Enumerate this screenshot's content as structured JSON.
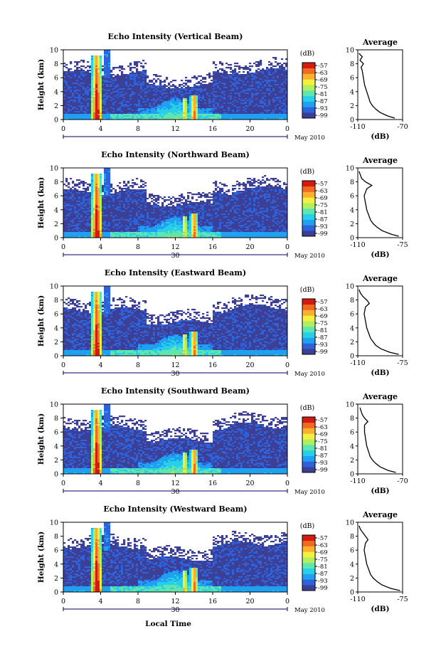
{
  "figure": {
    "x_axis_label": "Local Time",
    "y_axis_label": "Height (km)",
    "month_label": "May 2010",
    "date_label": "30",
    "colorbar_unit": "(dB)",
    "colorbar_ticks": [
      "-57",
      "-63",
      "-69",
      "-75",
      "-81",
      "-87",
      "-93",
      "-99"
    ],
    "average_title": "Average",
    "average_xlabel": "(dB)",
    "colors": [
      "#3b3f96",
      "#2f61d8",
      "#1fa0f0",
      "#27d0e8",
      "#5fe6b0",
      "#b0f060",
      "#f4f040",
      "#f8b030",
      "#f06a20",
      "#d21a12"
    ]
  },
  "chart_data": [
    {
      "type": "heatmap",
      "title": "Echo Intensity (Vertical Beam)",
      "x_ticks": [
        "0",
        "4",
        "8",
        "12",
        "16",
        "20",
        "0"
      ],
      "x_range": [
        0,
        24
      ],
      "y_ticks": [
        "0",
        "2",
        "4",
        "6",
        "8",
        "10"
      ],
      "y_range": [
        0,
        10
      ],
      "show_date": false,
      "average": {
        "title": "Average",
        "x_ticks": [
          "-110",
          "-70"
        ],
        "x_range": [
          -110,
          -70
        ],
        "height_km": [
          0.2,
          0.5,
          1.0,
          1.5,
          2.0,
          2.5,
          3.0,
          4.0,
          5.0,
          6.0,
          7.0,
          7.5,
          8.0,
          8.5,
          9.0,
          9.5
        ],
        "value_db": [
          -77,
          -83,
          -90,
          -94,
          -97,
          -99,
          -100,
          -102,
          -104,
          -105,
          -106,
          -107,
          -105,
          -108,
          -106,
          -109
        ]
      }
    },
    {
      "type": "heatmap",
      "title": "Echo Intensity (Northward Beam)",
      "x_ticks": [
        "0",
        "4",
        "8",
        "12",
        "16",
        "20",
        "0"
      ],
      "x_range": [
        0,
        24
      ],
      "y_ticks": [
        "0",
        "2",
        "4",
        "6",
        "8",
        "10"
      ],
      "y_range": [
        0,
        10
      ],
      "show_date": true,
      "average": {
        "title": "Average",
        "x_ticks": [
          "-110",
          "-75"
        ],
        "x_range": [
          -110,
          -75
        ],
        "height_km": [
          0.2,
          0.5,
          1.0,
          1.5,
          2.0,
          2.5,
          3.0,
          4.0,
          5.0,
          6.0,
          7.0,
          7.5,
          8.0,
          8.5,
          9.0,
          9.5
        ],
        "value_db": [
          -78,
          -84,
          -91,
          -95,
          -98,
          -100,
          -101,
          -103,
          -104,
          -105,
          -103,
          -99,
          -104,
          -107,
          -108,
          -109
        ]
      }
    },
    {
      "type": "heatmap",
      "title": "Echo Intensity (Eastward Beam)",
      "x_ticks": [
        "0",
        "4",
        "8",
        "12",
        "16",
        "20",
        "0"
      ],
      "x_range": [
        0,
        24
      ],
      "y_ticks": [
        "0",
        "2",
        "4",
        "6",
        "8",
        "10"
      ],
      "y_range": [
        0,
        10
      ],
      "show_date": true,
      "average": {
        "title": "Average",
        "x_ticks": [
          "-110",
          "-75"
        ],
        "x_range": [
          -110,
          -75
        ],
        "height_km": [
          0.2,
          0.5,
          1.0,
          1.5,
          2.0,
          2.5,
          3.0,
          4.0,
          5.0,
          6.0,
          7.0,
          7.5,
          8.0,
          8.5,
          9.0,
          9.5
        ],
        "value_db": [
          -78,
          -85,
          -92,
          -96,
          -98,
          -100,
          -101,
          -103,
          -104,
          -105,
          -104,
          -101,
          -103,
          -106,
          -108,
          -109
        ]
      }
    },
    {
      "type": "heatmap",
      "title": "Echo Intensity (Southward Beam)",
      "x_ticks": [
        "0",
        "4",
        "8",
        "12",
        "16",
        "20",
        "0"
      ],
      "x_range": [
        0,
        24
      ],
      "y_ticks": [
        "0",
        "2",
        "4",
        "6",
        "8",
        "10"
      ],
      "y_range": [
        0,
        10
      ],
      "show_date": true,
      "average": {
        "title": "Average",
        "x_ticks": [
          "-110",
          "-70"
        ],
        "x_range": [
          -110,
          -70
        ],
        "height_km": [
          0.2,
          0.5,
          1.0,
          1.5,
          2.0,
          2.5,
          3.0,
          4.0,
          5.0,
          6.0,
          7.0,
          7.5,
          8.0,
          8.5,
          9.0,
          9.5
        ],
        "value_db": [
          -76,
          -83,
          -90,
          -94,
          -97,
          -99,
          -100,
          -102,
          -103,
          -104,
          -104,
          -101,
          -104,
          -106,
          -107,
          -108
        ]
      }
    },
    {
      "type": "heatmap",
      "title": "Echo Intensity (Westward Beam)",
      "x_ticks": [
        "0",
        "4",
        "8",
        "12",
        "16",
        "20",
        "0"
      ],
      "x_range": [
        0,
        24
      ],
      "y_ticks": [
        "0",
        "2",
        "4",
        "6",
        "8",
        "10"
      ],
      "y_range": [
        0,
        10
      ],
      "show_date": true,
      "average": {
        "title": "Average",
        "x_ticks": [
          "-110",
          "-75"
        ],
        "x_range": [
          -110,
          -75
        ],
        "height_km": [
          0.2,
          0.5,
          1.0,
          1.5,
          2.0,
          2.5,
          3.0,
          4.0,
          5.0,
          6.0,
          7.0,
          7.5,
          8.0,
          8.5,
          9.0,
          9.5
        ],
        "value_db": [
          -77,
          -84,
          -91,
          -95,
          -98,
          -100,
          -101,
          -103,
          -104,
          -105,
          -104,
          -102,
          -104,
          -106,
          -108,
          -109
        ]
      }
    }
  ]
}
